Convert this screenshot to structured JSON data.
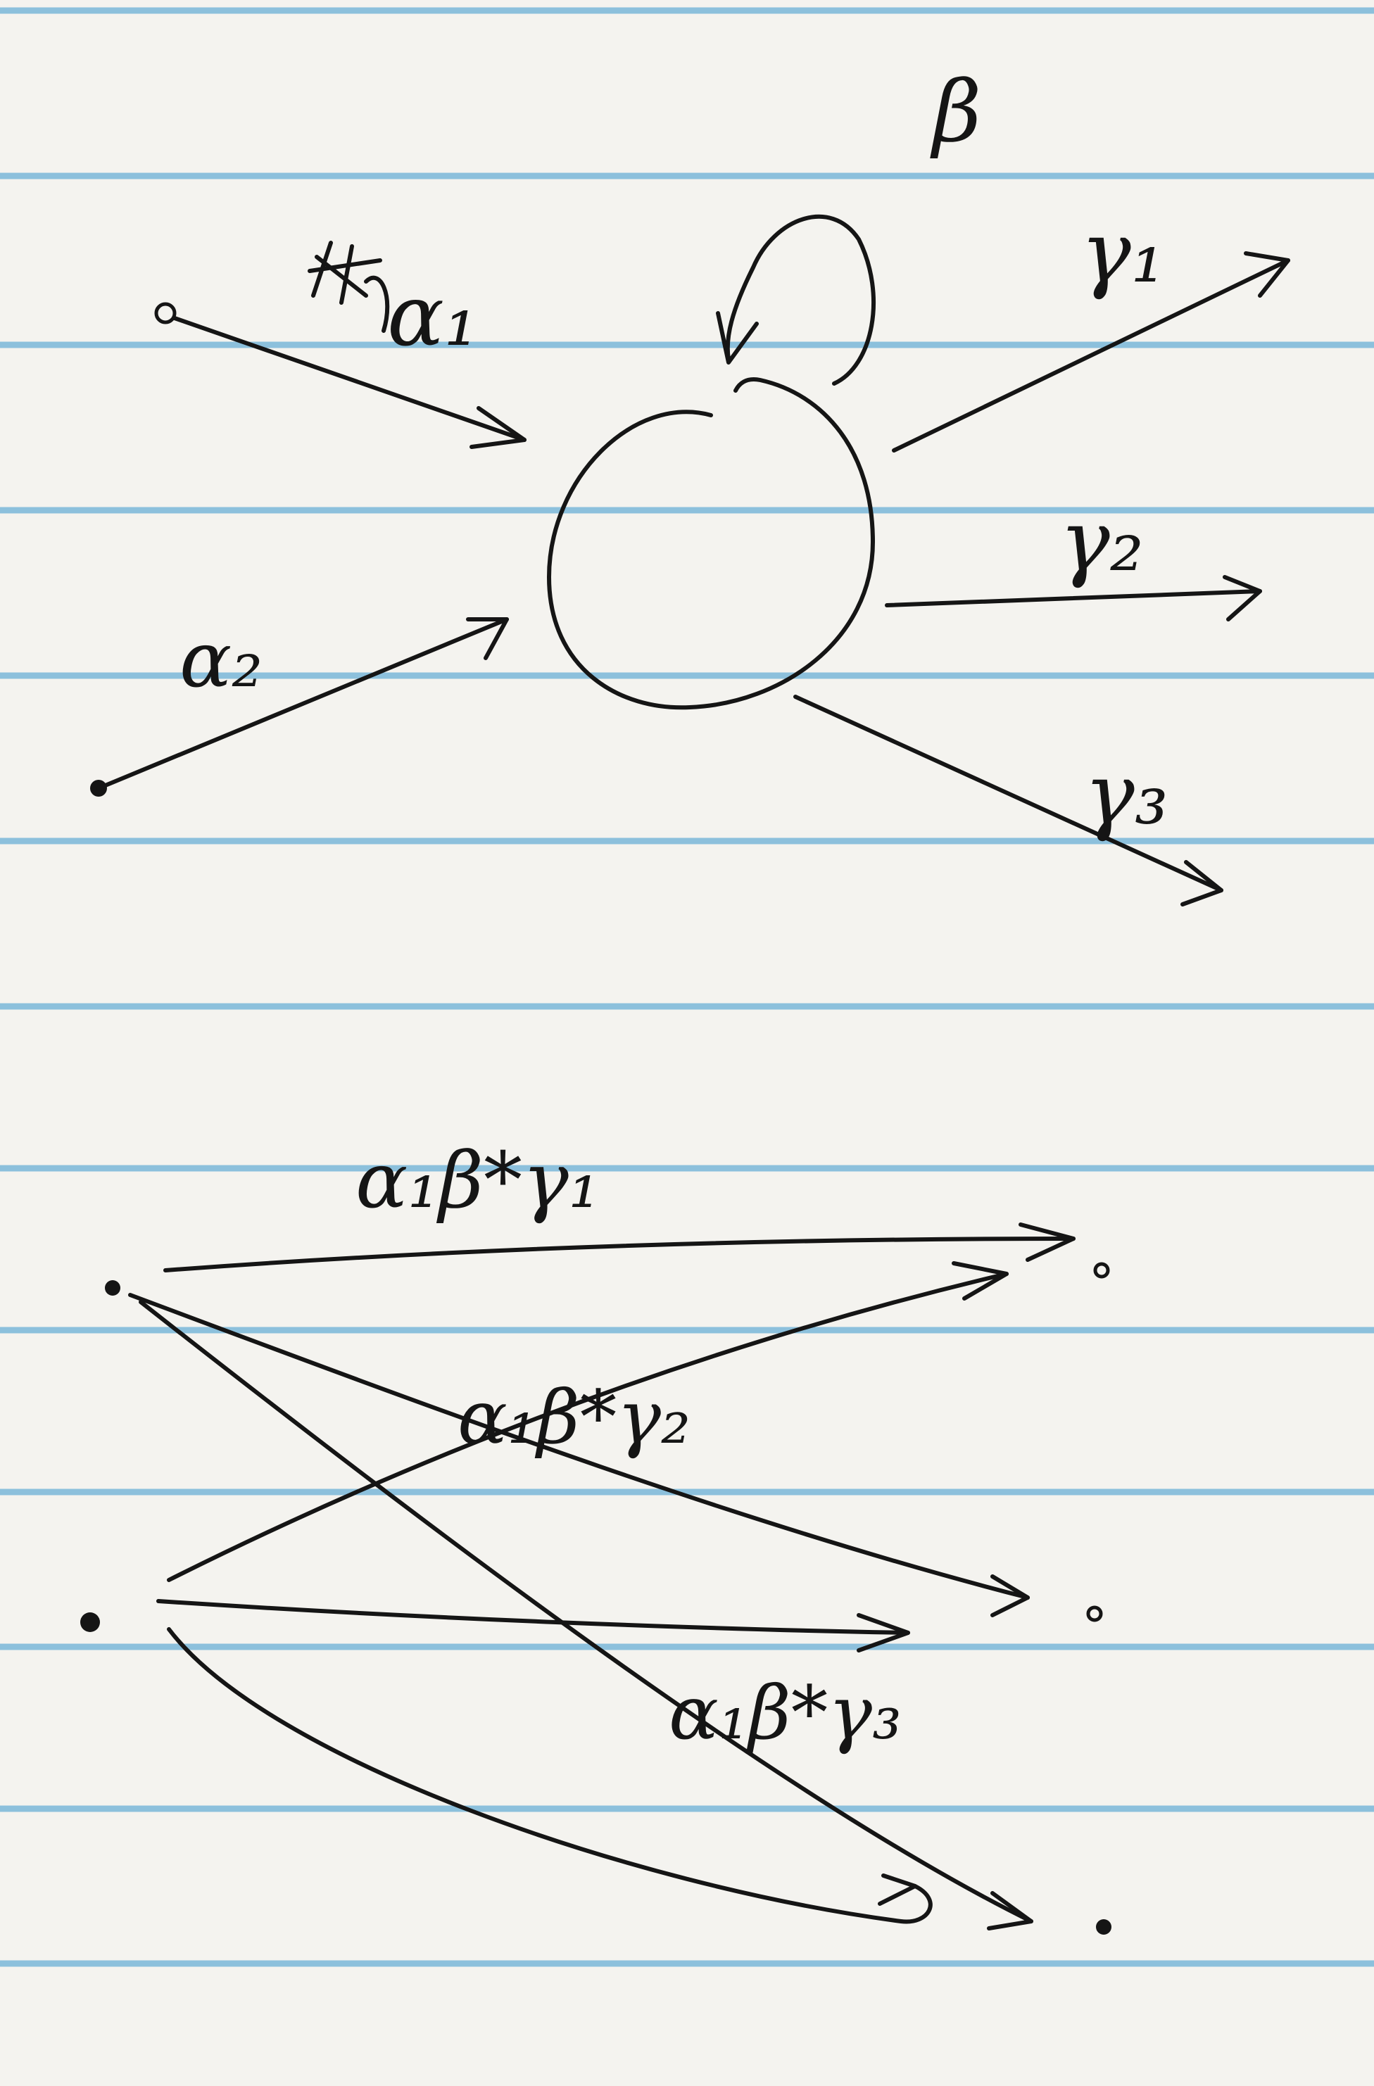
{
  "top_diagram": {
    "self_loop_label": "β",
    "incoming_labels": [
      "α₁",
      "α₂"
    ],
    "outgoing_labels": [
      "γ₁",
      "γ₂",
      "γ₃"
    ]
  },
  "bottom_diagram": {
    "edge_labels": [
      "α₁β*γ₁",
      "α₁β*γ₂",
      "α₁β*γ₃"
    ]
  },
  "colors": {
    "ink": "#151515",
    "paper": "#f4f3ef",
    "rule": "#8cc0dc"
  }
}
